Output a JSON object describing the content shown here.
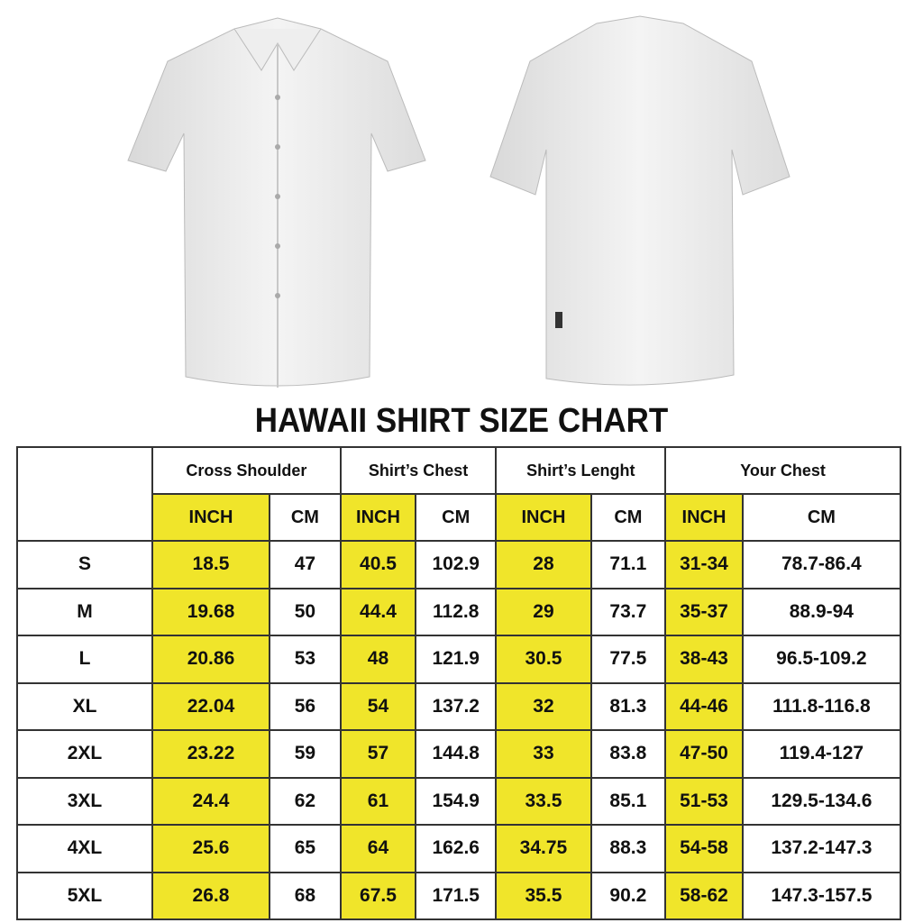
{
  "title": "HAWAII SHIRT SIZE CHART",
  "colors": {
    "inch_highlight": "#f0e52a",
    "border": "#333333"
  },
  "groups": [
    "Cross Shoulder",
    "Shirt’s Chest",
    "Shirt’s Lenght",
    "Your Chest"
  ],
  "units": [
    "INCH",
    "CM"
  ],
  "rows": [
    {
      "size": "S",
      "values": [
        "18.5",
        "47",
        "40.5",
        "102.9",
        "28",
        "71.1",
        "31-34",
        "78.7-86.4"
      ]
    },
    {
      "size": "M",
      "values": [
        "19.68",
        "50",
        "44.4",
        "112.8",
        "29",
        "73.7",
        "35-37",
        "88.9-94"
      ]
    },
    {
      "size": "L",
      "values": [
        "20.86",
        "53",
        "48",
        "121.9",
        "30.5",
        "77.5",
        "38-43",
        "96.5-109.2"
      ]
    },
    {
      "size": "XL",
      "values": [
        "22.04",
        "56",
        "54",
        "137.2",
        "32",
        "81.3",
        "44-46",
        "111.8-116.8"
      ]
    },
    {
      "size": "2XL",
      "values": [
        "23.22",
        "59",
        "57",
        "144.8",
        "33",
        "83.8",
        "47-50",
        "119.4-127"
      ]
    },
    {
      "size": "3XL",
      "values": [
        "24.4",
        "62",
        "61",
        "154.9",
        "33.5",
        "85.1",
        "51-53",
        "129.5-134.6"
      ]
    },
    {
      "size": "4XL",
      "values": [
        "25.6",
        "65",
        "64",
        "162.6",
        "34.75",
        "88.3",
        "54-58",
        "137.2-147.3"
      ]
    },
    {
      "size": "5XL",
      "values": [
        "26.8",
        "68",
        "67.5",
        "171.5",
        "35.5",
        "90.2",
        "58-62",
        "147.3-157.5"
      ]
    }
  ]
}
